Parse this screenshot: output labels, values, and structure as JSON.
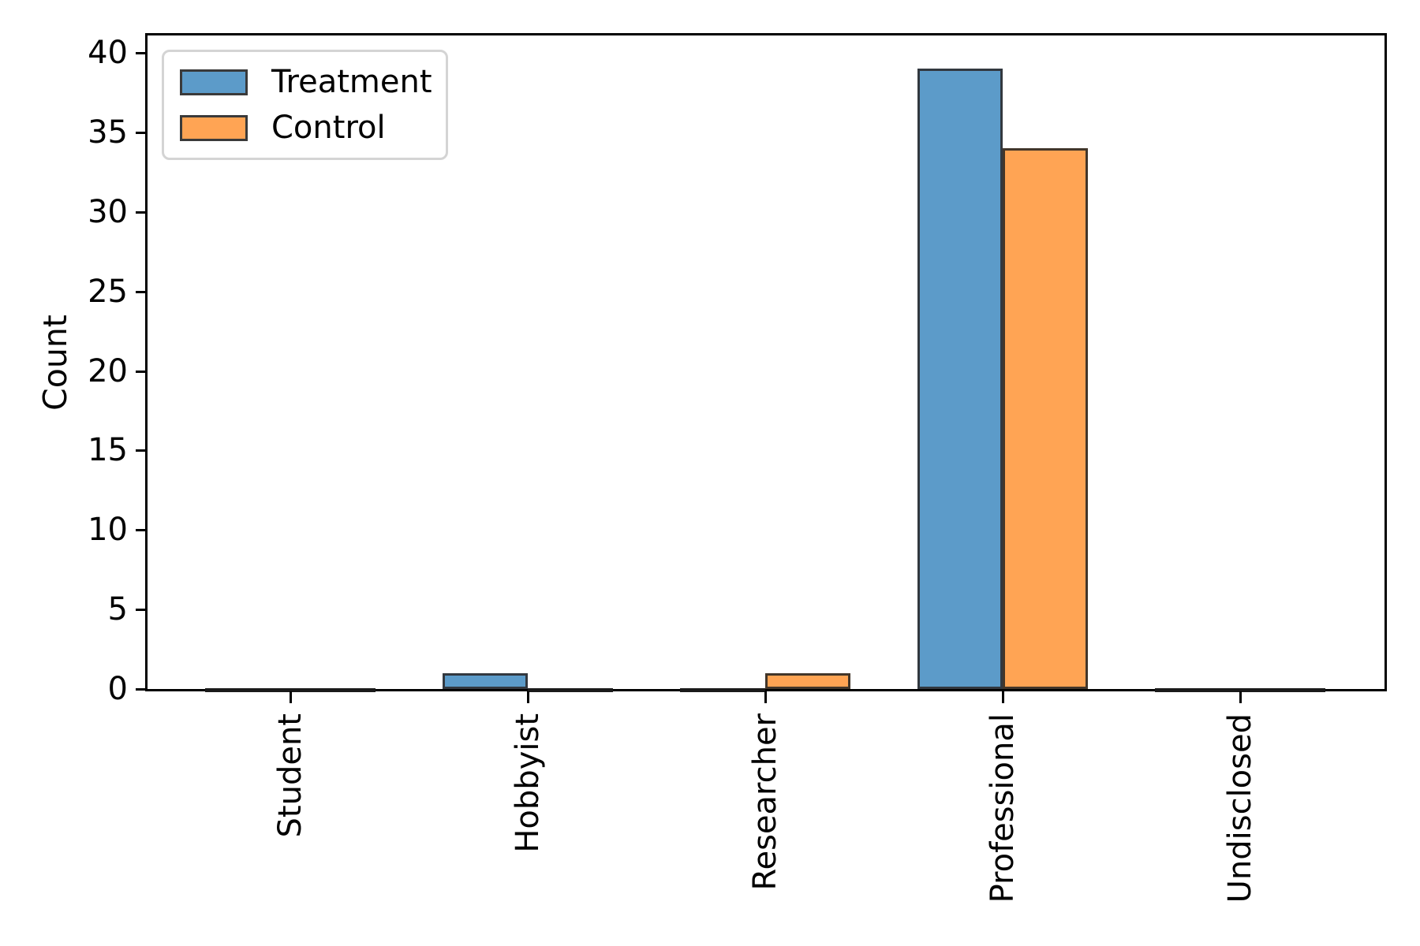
{
  "chart_data": {
    "type": "bar",
    "title": "",
    "xlabel": "",
    "ylabel": "Count",
    "categories": [
      "Student",
      "Hobbyist",
      "Researcher",
      "Professional",
      "Undisclosed"
    ],
    "series": [
      {
        "name": "Treatment",
        "values": [
          0,
          1,
          0,
          39,
          0
        ],
        "fill": "#5C9BC9",
        "edge": "#32383f"
      },
      {
        "name": "Control",
        "values": [
          0,
          0,
          1,
          34,
          0
        ],
        "fill": "#FFA454",
        "edge": "#42362a"
      }
    ],
    "y_ticks": [
      0,
      5,
      10,
      15,
      20,
      25,
      30,
      35,
      40
    ],
    "ylim": [
      0,
      41.1
    ],
    "grid": false,
    "legend_position": "upper left",
    "x_tick_rotation": 90,
    "axis_color": "#000000",
    "background_color": "#ffffff"
  }
}
